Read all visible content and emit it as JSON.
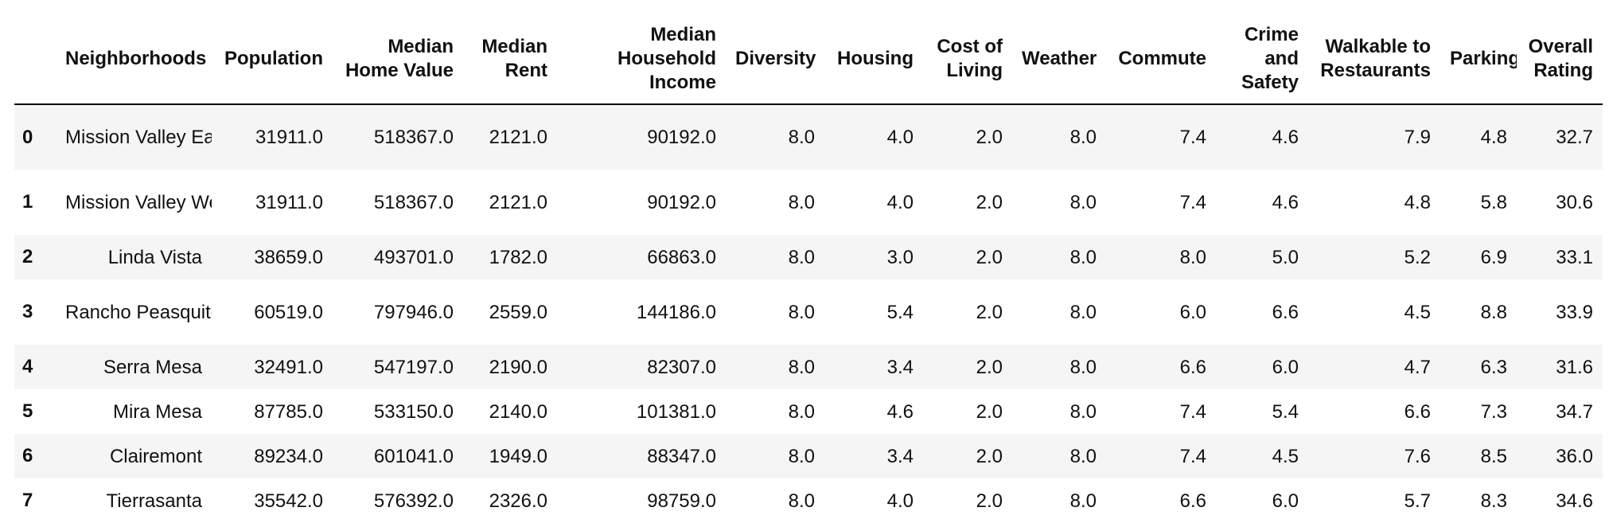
{
  "columns": [
    "",
    "Neighborhoods",
    "Population",
    "Median Home Value",
    "Median Rent",
    "Median Household Income",
    "Diversity",
    "Housing",
    "Cost of Living",
    "Weather",
    "Commute",
    "Crime and Safety",
    "Walkable to Restaurants",
    "Parking",
    "Overall Rating"
  ],
  "rows": [
    {
      "index": "0",
      "neighborhood": "Mission Valley East",
      "population": "31911.0",
      "median_home_value": "518367.0",
      "median_rent": "2121.0",
      "median_household_income": "90192.0",
      "diversity": "8.0",
      "housing": "4.0",
      "cost_of_living": "2.0",
      "weather": "8.0",
      "commute": "7.4",
      "crime_and_safety": "4.6",
      "walkable_to_restaurants": "7.9",
      "parking": "4.8",
      "overall_rating": "32.7"
    },
    {
      "index": "1",
      "neighborhood": "Mission Valley West",
      "population": "31911.0",
      "median_home_value": "518367.0",
      "median_rent": "2121.0",
      "median_household_income": "90192.0",
      "diversity": "8.0",
      "housing": "4.0",
      "cost_of_living": "2.0",
      "weather": "8.0",
      "commute": "7.4",
      "crime_and_safety": "4.6",
      "walkable_to_restaurants": "4.8",
      "parking": "5.8",
      "overall_rating": "30.6"
    },
    {
      "index": "2",
      "neighborhood": "Linda Vista",
      "population": "38659.0",
      "median_home_value": "493701.0",
      "median_rent": "1782.0",
      "median_household_income": "66863.0",
      "diversity": "8.0",
      "housing": "3.0",
      "cost_of_living": "2.0",
      "weather": "8.0",
      "commute": "8.0",
      "crime_and_safety": "5.0",
      "walkable_to_restaurants": "5.2",
      "parking": "6.9",
      "overall_rating": "33.1"
    },
    {
      "index": "3",
      "neighborhood": "Rancho Peasquitos",
      "population": "60519.0",
      "median_home_value": "797946.0",
      "median_rent": "2559.0",
      "median_household_income": "144186.0",
      "diversity": "8.0",
      "housing": "5.4",
      "cost_of_living": "2.0",
      "weather": "8.0",
      "commute": "6.0",
      "crime_and_safety": "6.6",
      "walkable_to_restaurants": "4.5",
      "parking": "8.8",
      "overall_rating": "33.9"
    },
    {
      "index": "4",
      "neighborhood": "Serra Mesa",
      "population": "32491.0",
      "median_home_value": "547197.0",
      "median_rent": "2190.0",
      "median_household_income": "82307.0",
      "diversity": "8.0",
      "housing": "3.4",
      "cost_of_living": "2.0",
      "weather": "8.0",
      "commute": "6.6",
      "crime_and_safety": "6.0",
      "walkable_to_restaurants": "4.7",
      "parking": "6.3",
      "overall_rating": "31.6"
    },
    {
      "index": "5",
      "neighborhood": "Mira Mesa",
      "population": "87785.0",
      "median_home_value": "533150.0",
      "median_rent": "2140.0",
      "median_household_income": "101381.0",
      "diversity": "8.0",
      "housing": "4.6",
      "cost_of_living": "2.0",
      "weather": "8.0",
      "commute": "7.4",
      "crime_and_safety": "5.4",
      "walkable_to_restaurants": "6.6",
      "parking": "7.3",
      "overall_rating": "34.7"
    },
    {
      "index": "6",
      "neighborhood": "Clairemont",
      "population": "89234.0",
      "median_home_value": "601041.0",
      "median_rent": "1949.0",
      "median_household_income": "88347.0",
      "diversity": "8.0",
      "housing": "3.4",
      "cost_of_living": "2.0",
      "weather": "8.0",
      "commute": "7.4",
      "crime_and_safety": "4.5",
      "walkable_to_restaurants": "7.6",
      "parking": "8.5",
      "overall_rating": "36.0"
    },
    {
      "index": "7",
      "neighborhood": "Tierrasanta",
      "population": "35542.0",
      "median_home_value": "576392.0",
      "median_rent": "2326.0",
      "median_household_income": "98759.0",
      "diversity": "8.0",
      "housing": "4.0",
      "cost_of_living": "2.0",
      "weather": "8.0",
      "commute": "6.6",
      "crime_and_safety": "6.0",
      "walkable_to_restaurants": "5.7",
      "parking": "8.3",
      "overall_rating": "34.6"
    }
  ]
}
